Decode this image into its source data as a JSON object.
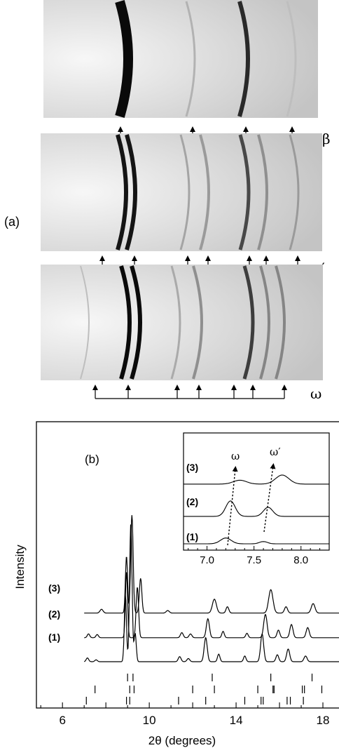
{
  "panel_a": {
    "label": "(a)",
    "patterns": [
      {
        "phase": "β",
        "marker_style": "double",
        "rings": [
          {
            "x": 183,
            "dark": 1.0,
            "width": 14
          },
          {
            "x": 278,
            "dark": 0.18,
            "width": 3
          },
          {
            "x": 354,
            "dark": 0.85,
            "width": 6
          },
          {
            "x": 422,
            "dark": 0.12,
            "width": 3
          }
        ],
        "markers": [
          172,
          275,
          351,
          417
        ]
      },
      {
        "phase": "ω′",
        "marker_style": "double",
        "rings": [
          {
            "x": 180,
            "dark": 0.95,
            "width": 6
          },
          {
            "x": 193,
            "dark": 0.95,
            "width": 6
          },
          {
            "x": 270,
            "dark": 0.25,
            "width": 3
          },
          {
            "x": 298,
            "dark": 0.3,
            "width": 4
          },
          {
            "x": 355,
            "dark": 0.7,
            "width": 5
          },
          {
            "x": 381,
            "dark": 0.35,
            "width": 4
          },
          {
            "x": 426,
            "dark": 0.3,
            "width": 3
          }
        ],
        "markers": [
          146,
          192,
          268,
          297,
          356,
          380,
          425
        ]
      },
      {
        "phase": "ω",
        "marker_style": "up",
        "rings": [
          {
            "x": 127,
            "dark": 0.12,
            "width": 2
          },
          {
            "x": 185,
            "dark": 1.0,
            "width": 6
          },
          {
            "x": 200,
            "dark": 1.0,
            "width": 6
          },
          {
            "x": 257,
            "dark": 0.22,
            "width": 3
          },
          {
            "x": 288,
            "dark": 0.35,
            "width": 4
          },
          {
            "x": 361,
            "dark": 0.75,
            "width": 5
          },
          {
            "x": 384,
            "dark": 0.4,
            "width": 4
          },
          {
            "x": 406,
            "dark": 0.4,
            "width": 4
          }
        ],
        "markers": [
          136,
          183,
          253,
          284,
          334,
          361,
          406
        ]
      }
    ]
  },
  "chart_data": {
    "type": "line",
    "panel_label": "(b)",
    "xlabel": "2θ (degrees)",
    "ylabel": "Intensity",
    "xlim": [
      4.8,
      19
    ],
    "xticks": [
      6,
      10,
      14,
      18
    ],
    "series": [
      {
        "name": "(1)",
        "baseline": 0.0,
        "peaks": [
          {
            "x": 7.15,
            "h": 0.06,
            "w": 0.08
          },
          {
            "x": 7.55,
            "h": 0.03,
            "w": 0.08
          },
          {
            "x": 8.9,
            "h": 1.05,
            "w": 0.07
          },
          {
            "x": 9.15,
            "h": 2.2,
            "w": 0.08
          },
          {
            "x": 9.35,
            "h": 0.45,
            "w": 0.07
          },
          {
            "x": 11.4,
            "h": 0.08,
            "w": 0.09
          },
          {
            "x": 11.8,
            "h": 0.05,
            "w": 0.09
          },
          {
            "x": 12.6,
            "h": 0.38,
            "w": 0.1
          },
          {
            "x": 13.2,
            "h": 0.12,
            "w": 0.08
          },
          {
            "x": 14.4,
            "h": 0.09,
            "w": 0.08
          },
          {
            "x": 15.2,
            "h": 0.44,
            "w": 0.1
          },
          {
            "x": 15.9,
            "h": 0.11,
            "w": 0.09
          },
          {
            "x": 16.4,
            "h": 0.2,
            "w": 0.1
          },
          {
            "x": 17.2,
            "h": 0.09,
            "w": 0.1
          }
        ]
      },
      {
        "name": "(2)",
        "baseline": 0.38,
        "peaks": [
          {
            "x": 7.2,
            "h": 0.06,
            "w": 0.08
          },
          {
            "x": 7.6,
            "h": 0.05,
            "w": 0.08
          },
          {
            "x": 8.95,
            "h": 1.05,
            "w": 0.07
          },
          {
            "x": 9.45,
            "h": 0.8,
            "w": 0.08
          },
          {
            "x": 11.5,
            "h": 0.08,
            "w": 0.09
          },
          {
            "x": 11.9,
            "h": 0.06,
            "w": 0.09
          },
          {
            "x": 12.7,
            "h": 0.3,
            "w": 0.1
          },
          {
            "x": 13.4,
            "h": 0.1,
            "w": 0.08
          },
          {
            "x": 14.5,
            "h": 0.07,
            "w": 0.08
          },
          {
            "x": 15.35,
            "h": 0.37,
            "w": 0.11
          },
          {
            "x": 15.95,
            "h": 0.12,
            "w": 0.09
          },
          {
            "x": 16.55,
            "h": 0.21,
            "w": 0.1
          },
          {
            "x": 17.3,
            "h": 0.16,
            "w": 0.1
          }
        ]
      },
      {
        "name": "(3)",
        "baseline": 0.77,
        "peaks": [
          {
            "x": 7.8,
            "h": 0.06,
            "w": 0.1
          },
          {
            "x": 8.95,
            "h": 0.9,
            "w": 0.07
          },
          {
            "x": 9.2,
            "h": 1.55,
            "w": 0.08
          },
          {
            "x": 9.6,
            "h": 0.55,
            "w": 0.08
          },
          {
            "x": 10.85,
            "h": 0.04,
            "w": 0.1
          },
          {
            "x": 13.0,
            "h": 0.22,
            "w": 0.13
          },
          {
            "x": 13.6,
            "h": 0.1,
            "w": 0.09
          },
          {
            "x": 15.6,
            "h": 0.37,
            "w": 0.14
          },
          {
            "x": 16.3,
            "h": 0.1,
            "w": 0.1
          },
          {
            "x": 17.55,
            "h": 0.15,
            "w": 0.12
          }
        ]
      }
    ],
    "reflection_ticks": [
      [
        9.0,
        9.25,
        12.9,
        15.6,
        17.5
      ],
      [
        7.5,
        9.1,
        9.3,
        12.0,
        13.0,
        15.0,
        15.7,
        15.75,
        17.05,
        17.15,
        17.95
      ],
      [
        7.1,
        8.95,
        9.1,
        11.35,
        12.6,
        14.4,
        15.15,
        15.25,
        16.35,
        16.5,
        17.1
      ]
    ],
    "inset": {
      "xlim": [
        6.75,
        8.3
      ],
      "xticks": [
        "7.0",
        "7.5",
        "8.0"
      ],
      "series": [
        {
          "name": "(1)",
          "baseline": 0.0,
          "peaks": [
            {
              "x": 7.2,
              "h": 0.18,
              "w": 0.08
            },
            {
              "x": 7.6,
              "h": 0.07,
              "w": 0.06
            }
          ]
        },
        {
          "name": "(2)",
          "baseline": 0.85,
          "peaks": [
            {
              "x": 7.25,
              "h": 0.48,
              "w": 0.07
            },
            {
              "x": 7.65,
              "h": 0.28,
              "w": 0.07
            }
          ]
        },
        {
          "name": "(3)",
          "baseline": 1.85,
          "peaks": [
            {
              "x": 7.35,
              "h": 0.12,
              "w": 0.1
            },
            {
              "x": 7.8,
              "h": 0.28,
              "w": 0.1
            }
          ]
        }
      ],
      "annotations": [
        "ω",
        "ω′"
      ]
    }
  }
}
